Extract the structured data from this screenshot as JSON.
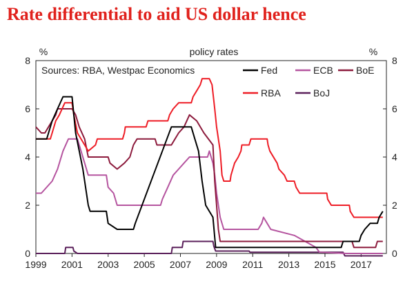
{
  "headline": "Rate differential to aid US dollar hence",
  "chart_data": {
    "type": "line",
    "title": "policy rates",
    "y_unit_left": "%",
    "y_unit_right": "%",
    "source": "Sources: RBA, Westpac Economics",
    "xlim": [
      1999,
      2018.4
    ],
    "ylim": [
      0,
      8
    ],
    "x_ticks": [
      "1999",
      "2001",
      "2003",
      "2005",
      "2007",
      "2009",
      "2011",
      "2013",
      "2015",
      "2017"
    ],
    "y_ticks": [
      "0",
      "2",
      "4",
      "6",
      "8"
    ],
    "grid": false,
    "legend_position": "top-right",
    "series": [
      {
        "name": "Fed",
        "color": "#000000",
        "points": [
          [
            1999.0,
            4.75
          ],
          [
            1999.6,
            4.75
          ],
          [
            1999.9,
            5.5
          ],
          [
            2000.2,
            6.0
          ],
          [
            2000.5,
            6.5
          ],
          [
            2001.0,
            6.5
          ],
          [
            2001.2,
            5.0
          ],
          [
            2001.6,
            3.5
          ],
          [
            2001.9,
            2.0
          ],
          [
            2002.0,
            1.75
          ],
          [
            2002.9,
            1.75
          ],
          [
            2003.0,
            1.25
          ],
          [
            2003.5,
            1.0
          ],
          [
            2004.4,
            1.0
          ],
          [
            2004.5,
            1.25
          ],
          [
            2005.0,
            2.25
          ],
          [
            2005.5,
            3.25
          ],
          [
            2006.0,
            4.25
          ],
          [
            2006.5,
            5.25
          ],
          [
            2007.6,
            5.25
          ],
          [
            2007.8,
            4.75
          ],
          [
            2008.0,
            4.25
          ],
          [
            2008.2,
            3.0
          ],
          [
            2008.4,
            2.0
          ],
          [
            2008.8,
            1.5
          ],
          [
            2008.95,
            0.25
          ],
          [
            2015.9,
            0.25
          ],
          [
            2016.0,
            0.5
          ],
          [
            2016.9,
            0.5
          ],
          [
            2017.0,
            0.75
          ],
          [
            2017.2,
            1.0
          ],
          [
            2017.5,
            1.25
          ],
          [
            2017.9,
            1.25
          ],
          [
            2018.0,
            1.5
          ],
          [
            2018.2,
            1.75
          ]
        ]
      },
      {
        "name": "ECB",
        "color": "#b5549f",
        "points": [
          [
            1999.0,
            2.5
          ],
          [
            1999.3,
            2.5
          ],
          [
            1999.9,
            3.0
          ],
          [
            2000.2,
            3.5
          ],
          [
            2000.5,
            4.25
          ],
          [
            2000.8,
            4.75
          ],
          [
            2001.3,
            4.75
          ],
          [
            2001.4,
            4.5
          ],
          [
            2001.7,
            3.75
          ],
          [
            2001.9,
            3.25
          ],
          [
            2002.9,
            3.25
          ],
          [
            2003.0,
            2.75
          ],
          [
            2003.3,
            2.5
          ],
          [
            2003.5,
            2.0
          ],
          [
            2005.9,
            2.0
          ],
          [
            2006.0,
            2.25
          ],
          [
            2006.3,
            2.75
          ],
          [
            2006.6,
            3.25
          ],
          [
            2006.9,
            3.5
          ],
          [
            2007.2,
            3.75
          ],
          [
            2007.5,
            4.0
          ],
          [
            2008.5,
            4.0
          ],
          [
            2008.6,
            4.25
          ],
          [
            2008.8,
            3.75
          ],
          [
            2008.9,
            3.25
          ],
          [
            2009.0,
            2.5
          ],
          [
            2009.2,
            1.5
          ],
          [
            2009.4,
            1.0
          ],
          [
            2011.3,
            1.0
          ],
          [
            2011.5,
            1.25
          ],
          [
            2011.6,
            1.5
          ],
          [
            2011.8,
            1.25
          ],
          [
            2012.0,
            1.0
          ],
          [
            2013.3,
            0.75
          ],
          [
            2013.9,
            0.5
          ],
          [
            2014.5,
            0.25
          ],
          [
            2014.7,
            0.05
          ],
          [
            2016.2,
            0.0
          ],
          [
            2018.2,
            0.0
          ]
        ]
      },
      {
        "name": "BoE",
        "color": "#8c1a3c",
        "points": [
          [
            1999.0,
            5.25
          ],
          [
            1999.3,
            5.0
          ],
          [
            1999.5,
            5.0
          ],
          [
            1999.7,
            5.25
          ],
          [
            2000.1,
            5.75
          ],
          [
            2000.2,
            6.0
          ],
          [
            2001.0,
            6.0
          ],
          [
            2001.2,
            5.75
          ],
          [
            2001.4,
            5.25
          ],
          [
            2001.7,
            4.75
          ],
          [
            2001.9,
            4.0
          ],
          [
            2003.0,
            4.0
          ],
          [
            2003.1,
            3.75
          ],
          [
            2003.5,
            3.5
          ],
          [
            2003.9,
            3.75
          ],
          [
            2004.2,
            4.0
          ],
          [
            2004.4,
            4.5
          ],
          [
            2004.6,
            4.75
          ],
          [
            2005.6,
            4.75
          ],
          [
            2005.7,
            4.5
          ],
          [
            2006.5,
            4.5
          ],
          [
            2006.7,
            4.75
          ],
          [
            2006.9,
            5.0
          ],
          [
            2007.2,
            5.25
          ],
          [
            2007.5,
            5.75
          ],
          [
            2007.9,
            5.5
          ],
          [
            2008.1,
            5.25
          ],
          [
            2008.3,
            5.0
          ],
          [
            2008.8,
            4.5
          ],
          [
            2008.9,
            3.0
          ],
          [
            2009.0,
            2.0
          ],
          [
            2009.1,
            1.0
          ],
          [
            2009.2,
            0.5
          ],
          [
            2016.5,
            0.5
          ],
          [
            2016.6,
            0.25
          ],
          [
            2017.8,
            0.25
          ],
          [
            2017.9,
            0.5
          ],
          [
            2018.2,
            0.5
          ]
        ]
      },
      {
        "name": "RBA",
        "color": "#ee1c25",
        "points": [
          [
            1999.0,
            4.75
          ],
          [
            1999.8,
            4.75
          ],
          [
            1999.9,
            5.0
          ],
          [
            2000.1,
            5.5
          ],
          [
            2000.3,
            5.75
          ],
          [
            2000.6,
            6.25
          ],
          [
            2001.0,
            6.25
          ],
          [
            2001.1,
            5.75
          ],
          [
            2001.3,
            5.0
          ],
          [
            2001.7,
            4.5
          ],
          [
            2001.9,
            4.25
          ],
          [
            2002.3,
            4.5
          ],
          [
            2002.4,
            4.75
          ],
          [
            2003.8,
            4.75
          ],
          [
            2003.9,
            5.0
          ],
          [
            2003.95,
            5.25
          ],
          [
            2005.1,
            5.25
          ],
          [
            2005.2,
            5.5
          ],
          [
            2006.3,
            5.5
          ],
          [
            2006.4,
            5.75
          ],
          [
            2006.6,
            6.0
          ],
          [
            2006.9,
            6.25
          ],
          [
            2007.6,
            6.25
          ],
          [
            2007.7,
            6.5
          ],
          [
            2007.9,
            6.75
          ],
          [
            2008.1,
            7.0
          ],
          [
            2008.2,
            7.25
          ],
          [
            2008.6,
            7.25
          ],
          [
            2008.75,
            7.0
          ],
          [
            2008.9,
            6.0
          ],
          [
            2009.0,
            5.25
          ],
          [
            2009.2,
            4.25
          ],
          [
            2009.3,
            3.25
          ],
          [
            2009.4,
            3.0
          ],
          [
            2009.75,
            3.0
          ],
          [
            2009.8,
            3.25
          ],
          [
            2009.9,
            3.5
          ],
          [
            2010.0,
            3.75
          ],
          [
            2010.2,
            4.0
          ],
          [
            2010.35,
            4.25
          ],
          [
            2010.4,
            4.5
          ],
          [
            2010.8,
            4.5
          ],
          [
            2010.9,
            4.75
          ],
          [
            2011.8,
            4.75
          ],
          [
            2011.85,
            4.5
          ],
          [
            2011.95,
            4.25
          ],
          [
            2012.35,
            3.75
          ],
          [
            2012.45,
            3.5
          ],
          [
            2012.75,
            3.25
          ],
          [
            2012.9,
            3.0
          ],
          [
            2013.3,
            3.0
          ],
          [
            2013.4,
            2.75
          ],
          [
            2013.6,
            2.5
          ],
          [
            2015.1,
            2.5
          ],
          [
            2015.15,
            2.25
          ],
          [
            2015.35,
            2.0
          ],
          [
            2016.35,
            2.0
          ],
          [
            2016.4,
            1.75
          ],
          [
            2016.6,
            1.5
          ],
          [
            2018.2,
            1.5
          ]
        ]
      },
      {
        "name": "BoJ",
        "color": "#5a1f5a",
        "points": [
          [
            1999.0,
            0.0
          ],
          [
            2000.6,
            0.0
          ],
          [
            2000.65,
            0.25
          ],
          [
            2001.05,
            0.25
          ],
          [
            2001.1,
            0.1
          ],
          [
            2001.3,
            0.0
          ],
          [
            2006.5,
            0.0
          ],
          [
            2006.55,
            0.25
          ],
          [
            2007.1,
            0.25
          ],
          [
            2007.15,
            0.5
          ],
          [
            2008.8,
            0.5
          ],
          [
            2008.85,
            0.3
          ],
          [
            2008.95,
            0.1
          ],
          [
            2010.8,
            0.1
          ],
          [
            2010.85,
            0.05
          ],
          [
            2016.0,
            0.05
          ],
          [
            2016.1,
            -0.1
          ],
          [
            2018.2,
            -0.1
          ]
        ]
      }
    ]
  }
}
